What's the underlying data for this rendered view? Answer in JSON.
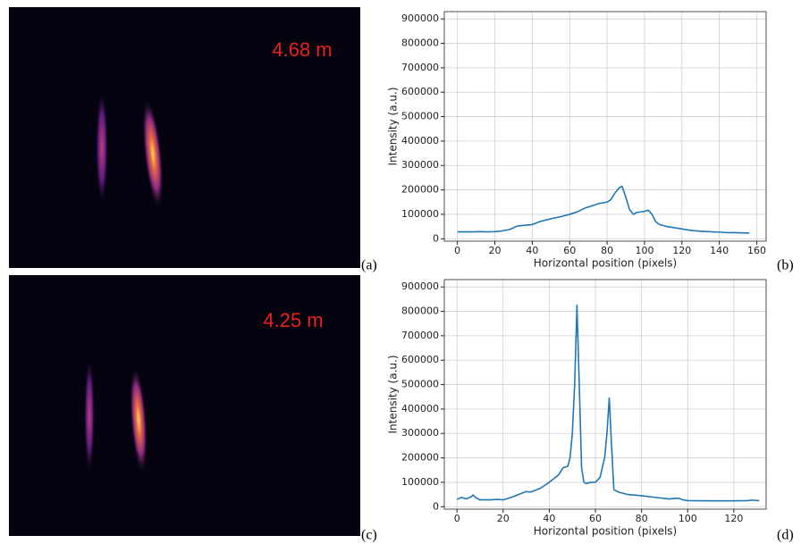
{
  "panels": {
    "image_a": {
      "label": "(a)",
      "distance": "4.68 m"
    },
    "image_c": {
      "label": "(c)",
      "distance": "4.25 m"
    },
    "chart_b_label": "(b)",
    "chart_d_label": "(d)"
  },
  "chart_data": [
    {
      "type": "line",
      "x_label": "Horizontal position (pixels)",
      "y_label": "Intensity (a.u.)",
      "xlim": [
        -7,
        165
      ],
      "ylim": [
        -10000,
        930000
      ],
      "xticks": [
        0,
        20,
        40,
        60,
        80,
        100,
        120,
        140,
        160
      ],
      "yticks": [
        0,
        100000,
        200000,
        300000,
        400000,
        500000,
        600000,
        700000,
        800000,
        900000
      ],
      "grid": true,
      "series": [
        {
          "color": "#1f77b4",
          "x": [
            0,
            4,
            8,
            12,
            16,
            20,
            24,
            28,
            32,
            36,
            40,
            44,
            48,
            52,
            56,
            60,
            64,
            68,
            72,
            76,
            80,
            82,
            84,
            86,
            88,
            90,
            92,
            94,
            96,
            100,
            102,
            104,
            106,
            108,
            112,
            116,
            120,
            124,
            128,
            132,
            136,
            140,
            144,
            148,
            152,
            156
          ],
          "values": [
            28000,
            28000,
            28000,
            29000,
            28000,
            29000,
            32000,
            38000,
            52000,
            55000,
            58000,
            70000,
            78000,
            85000,
            92000,
            100000,
            110000,
            125000,
            135000,
            145000,
            150000,
            160000,
            185000,
            205000,
            215000,
            170000,
            120000,
            100000,
            108000,
            112000,
            117000,
            100000,
            70000,
            58000,
            50000,
            45000,
            40000,
            35000,
            32000,
            30000,
            28000,
            27000,
            25000,
            25000,
            24000,
            23000
          ]
        }
      ]
    },
    {
      "type": "line",
      "x_label": "Horizontal position (pixels)",
      "y_label": "Intensity (a.u.)",
      "xlim": [
        -5.5,
        134
      ],
      "ylim": [
        -10000,
        930000
      ],
      "xticks": [
        0,
        20,
        40,
        60,
        80,
        100,
        120
      ],
      "yticks": [
        0,
        100000,
        200000,
        300000,
        400000,
        500000,
        600000,
        700000,
        800000,
        900000
      ],
      "grid": true,
      "series": [
        {
          "color": "#1f77b4",
          "x": [
            0,
            2,
            4,
            6,
            7,
            8,
            10,
            14,
            18,
            20,
            24,
            28,
            30,
            32,
            36,
            40,
            44,
            46,
            48,
            49,
            50,
            51,
            52,
            53,
            54,
            55,
            56,
            58,
            60,
            62,
            64,
            65,
            66,
            67,
            68,
            70,
            74,
            80,
            86,
            92,
            96,
            98,
            100,
            110,
            120,
            126,
            128,
            131
          ],
          "values": [
            30000,
            38000,
            32000,
            40000,
            48000,
            38000,
            28000,
            28000,
            30000,
            28000,
            40000,
            55000,
            62000,
            60000,
            75000,
            100000,
            130000,
            160000,
            165000,
            200000,
            300000,
            500000,
            825000,
            500000,
            160000,
            100000,
            95000,
            100000,
            100000,
            120000,
            200000,
            300000,
            445000,
            250000,
            70000,
            60000,
            50000,
            45000,
            38000,
            32000,
            35000,
            28000,
            25000,
            24000,
            24000,
            25000,
            27000,
            25000
          ]
        }
      ]
    }
  ]
}
